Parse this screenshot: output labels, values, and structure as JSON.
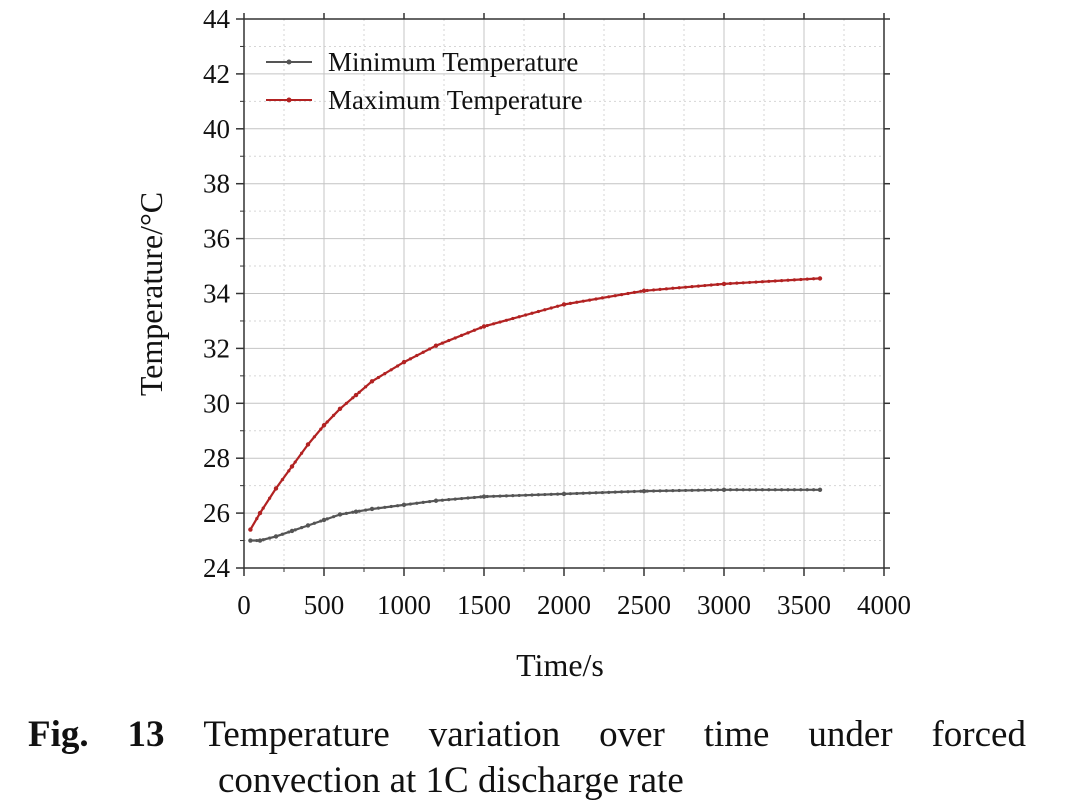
{
  "chart_data": {
    "type": "line",
    "title": "",
    "xlabel": "Time/s",
    "ylabel": "Temperature/°C",
    "xlim": [
      0,
      4000
    ],
    "ylim": [
      24,
      44
    ],
    "xticks": [
      0,
      500,
      1000,
      1500,
      2000,
      2500,
      3000,
      3500,
      4000
    ],
    "yticks": [
      24,
      26,
      28,
      30,
      32,
      34,
      36,
      38,
      40,
      42,
      44
    ],
    "grid": true,
    "legend_position": "top-left",
    "series": [
      {
        "name": "Minimum Temperature",
        "color": "#555555",
        "x": [
          40,
          100,
          200,
          300,
          400,
          500,
          600,
          700,
          800,
          1000,
          1200,
          1500,
          2000,
          2500,
          3000,
          3600
        ],
        "y": [
          25.0,
          25.0,
          25.15,
          25.35,
          25.55,
          25.75,
          25.95,
          26.05,
          26.15,
          26.3,
          26.45,
          26.6,
          26.7,
          26.8,
          26.85,
          26.85
        ]
      },
      {
        "name": "Maximum Temperature",
        "color": "#b22222",
        "x": [
          40,
          100,
          200,
          300,
          400,
          500,
          600,
          700,
          800,
          1000,
          1200,
          1500,
          2000,
          2500,
          3000,
          3600
        ],
        "y": [
          25.4,
          26.0,
          26.9,
          27.7,
          28.5,
          29.2,
          29.8,
          30.3,
          30.8,
          31.5,
          32.1,
          32.8,
          33.6,
          34.1,
          34.35,
          34.55
        ]
      }
    ]
  },
  "caption": {
    "fig_label": "Fig.",
    "fig_number": "13",
    "line1_words": [
      "Temperature",
      "variation",
      "over",
      "time",
      "under",
      "forced"
    ],
    "line2": "convection at 1C discharge rate"
  }
}
